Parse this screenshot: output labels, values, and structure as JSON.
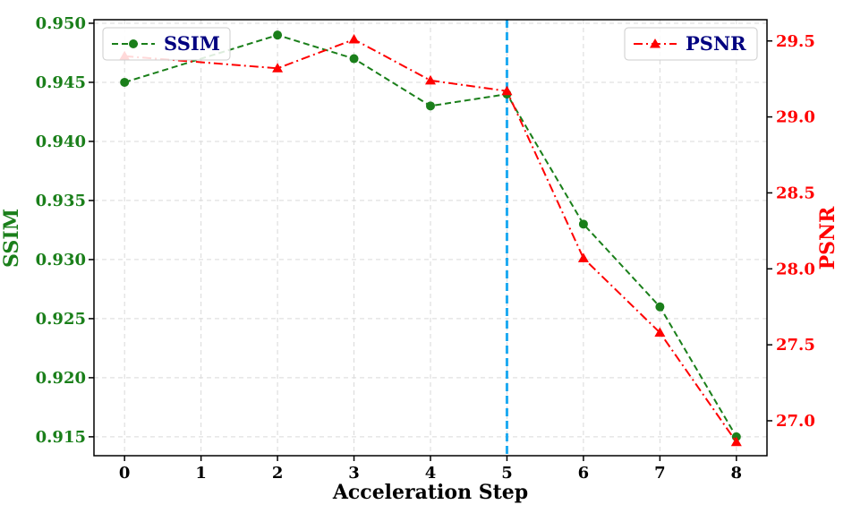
{
  "chart_data": {
    "type": "line",
    "xlabel": "Acceleration Step",
    "ylabel_left": "SSIM",
    "ylabel_right": "PSNR",
    "x": [
      0,
      1,
      2,
      3,
      4,
      5,
      6,
      7,
      8
    ],
    "x_tick_labels": [
      "0",
      "1",
      "2",
      "3",
      "4",
      "5",
      "6",
      "7",
      "8"
    ],
    "xlim": [
      -0.4,
      8.4
    ],
    "ylim_left": [
      0.9134,
      0.9503
    ],
    "ylim_right": [
      26.77,
      29.64
    ],
    "y_left_tick_labels": [
      "0.915",
      "0.920",
      "0.925",
      "0.930",
      "0.935",
      "0.940",
      "0.945",
      "0.950"
    ],
    "y_left_ticks": [
      0.915,
      0.92,
      0.925,
      0.93,
      0.935,
      0.94,
      0.945,
      0.95
    ],
    "y_right_tick_labels": [
      "27.0",
      "27.5",
      "28.0",
      "28.5",
      "29.0",
      "29.5"
    ],
    "y_right_ticks": [
      27.0,
      27.5,
      28.0,
      28.5,
      29.0,
      29.5
    ],
    "grid": true,
    "vline_x": 5,
    "series": [
      {
        "name": "SSIM",
        "axis": "left",
        "x": [
          0,
          2,
          3,
          4,
          5,
          6,
          7,
          8
        ],
        "values": [
          0.945,
          0.949,
          0.947,
          0.943,
          0.944,
          0.933,
          0.926,
          0.915
        ],
        "color": "#1a7f1a",
        "linestyle": "dashed",
        "marker": "circle"
      },
      {
        "name": "PSNR",
        "axis": "right",
        "x": [
          0,
          2,
          3,
          4,
          5,
          6,
          7,
          8
        ],
        "values": [
          29.4,
          29.32,
          29.51,
          29.24,
          29.17,
          28.07,
          27.58,
          26.86
        ],
        "color": "#ff0000",
        "linestyle": "dashdot",
        "marker": "triangle"
      }
    ],
    "legend_left_placement": "top-left",
    "legend_right_placement": "top-right"
  },
  "colors": {
    "ssim": "#1a7f1a",
    "psnr": "#ff0000",
    "vline": "#1eaaf1",
    "legend_text": "#000080",
    "grid": "#d9d9d9"
  }
}
